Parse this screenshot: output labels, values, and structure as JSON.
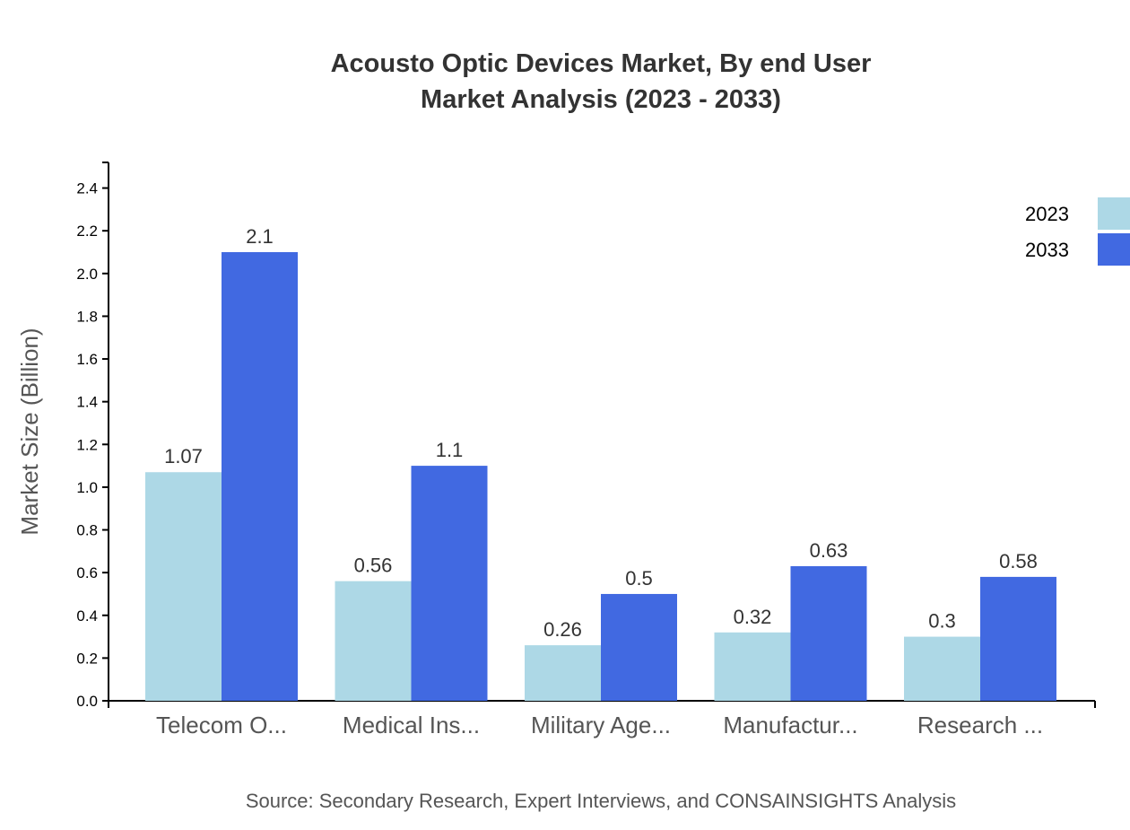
{
  "chart_data": {
    "type": "bar",
    "title": [
      "Acousto Optic Devices Market, By end User",
      "Market Analysis (2023 - 2033)"
    ],
    "xlabel": "",
    "ylabel": "Market Size (Billion)",
    "source": "Source: Secondary Research, Expert Interviews, and CONSAINSIGHTS Analysis",
    "categories": [
      "Telecom O...",
      "Medical Ins...",
      "Military Age...",
      "Manufactur...",
      "Research ..."
    ],
    "series": [
      {
        "name": "2023",
        "color": "#add8e6",
        "values": [
          1.07,
          0.56,
          0.26,
          0.32,
          0.3
        ]
      },
      {
        "name": "2033",
        "color": "#4169e1",
        "values": [
          2.1,
          1.1,
          0.5,
          0.63,
          0.58
        ]
      }
    ],
    "ylim": [
      0,
      2.52
    ],
    "yticks": [
      "0.0",
      "0.2",
      "0.4",
      "0.6",
      "0.8",
      "1.0",
      "1.2",
      "1.4",
      "1.6",
      "1.8",
      "2.0",
      "2.2",
      "2.4"
    ],
    "grid": false,
    "legend": "top-right"
  }
}
